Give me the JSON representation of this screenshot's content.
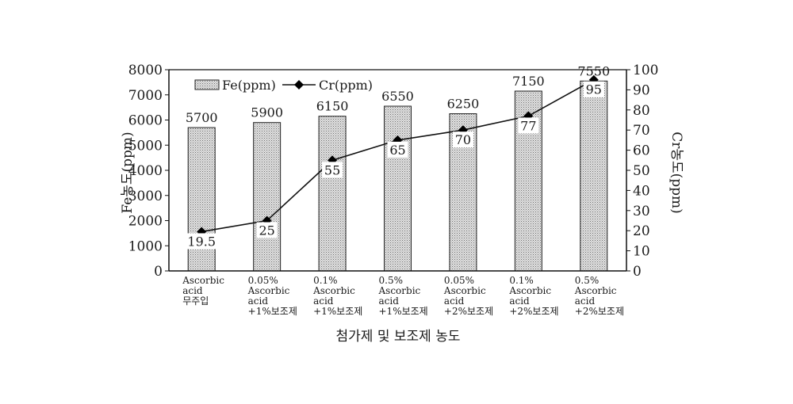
{
  "chart_data": {
    "type": "bar",
    "xlabel": "첨가제 및 보조제 농도",
    "ylabel_left": "Fe농도(ppm)",
    "ylabel_right": "Cr농도(ppm)",
    "ylim_left": [
      0,
      8000
    ],
    "ylim_right": [
      0,
      100
    ],
    "left_ticks": [
      "0",
      "1000",
      "2000",
      "3000",
      "4000",
      "5000",
      "6000",
      "7000",
      "8000"
    ],
    "right_ticks": [
      "0",
      "10",
      "20",
      "30",
      "40",
      "50",
      "60",
      "70",
      "80",
      "90",
      "100"
    ],
    "legend_position": "top-left",
    "grid": false,
    "categories": [
      [
        "Ascorbic",
        "acid",
        "무주입"
      ],
      [
        "0.05%",
        "Ascorbic",
        "acid",
        "+1%보조제"
      ],
      [
        "0.1%",
        "Ascorbic",
        "acid",
        "+1%보조제"
      ],
      [
        "0.5%",
        "Ascorbic",
        "acid",
        "+1%보조제"
      ],
      [
        "0.05%",
        "Ascorbic",
        "acid",
        "+2%보조제"
      ],
      [
        "0.1%",
        "Ascorbic",
        "acid",
        "+2%보조제"
      ],
      [
        "0.5%",
        "Ascorbic",
        "acid",
        "+2%보조제"
      ]
    ],
    "series": [
      {
        "name": "Fe(ppm)",
        "kind": "bar",
        "axis": "left",
        "values": [
          5700,
          5900,
          6150,
          6550,
          6250,
          7150,
          7550
        ],
        "labels": [
          "5700",
          "5900",
          "6150",
          "6550",
          "6250",
          "7150",
          "7550"
        ]
      },
      {
        "name": "Cr(ppm)",
        "kind": "line",
        "axis": "right",
        "values": [
          19.5,
          25,
          55,
          65,
          70,
          77,
          95
        ],
        "labels": [
          "19.5",
          "25",
          "55",
          "65",
          "70",
          "77",
          "95"
        ]
      }
    ]
  }
}
